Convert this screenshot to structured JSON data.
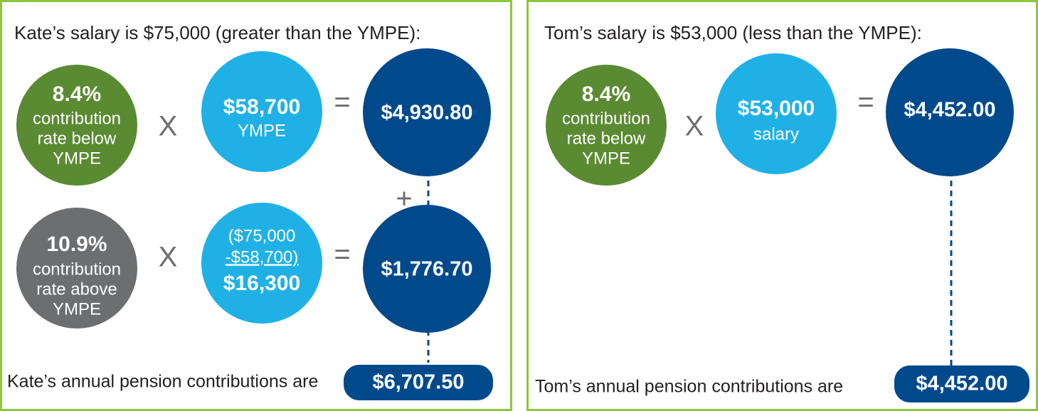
{
  "panels": [
    {
      "title": "Kate’s salary is $75,000 (greater than the YMPE):",
      "rows": [
        {
          "rate": {
            "value": "8.4%",
            "lines": [
              "contribution",
              "rate below",
              "YMPE"
            ]
          },
          "times": "X",
          "base": {
            "value": "$58,700",
            "lines": [
              "YMPE"
            ]
          },
          "equals": "=",
          "result": "$4,930.80"
        },
        {
          "rate": {
            "value": "10.9%",
            "lines": [
              "contribution",
              "rate above",
              "YMPE"
            ]
          },
          "times": "X",
          "base": {
            "lines": [
              "($75,000",
              "-$58,700)"
            ],
            "value": "$16,300"
          },
          "equals": "=",
          "result": "$1,776.70"
        }
      ],
      "plus": "+",
      "total_label": "Kate’s annual pension contributions are",
      "total": "$6,707.50"
    },
    {
      "title": "Tom’s salary is $53,000 (less than the YMPE):",
      "rows": [
        {
          "rate": {
            "value": "8.4%",
            "lines": [
              "contribution",
              "rate below",
              "YMPE"
            ]
          },
          "times": "X",
          "base": {
            "value": "$53,000",
            "lines": [
              "salary"
            ]
          },
          "equals": "=",
          "result": "$4,452.00"
        }
      ],
      "total_label": "Tom’s annual pension contributions are",
      "total": "$4,452.00"
    }
  ]
}
